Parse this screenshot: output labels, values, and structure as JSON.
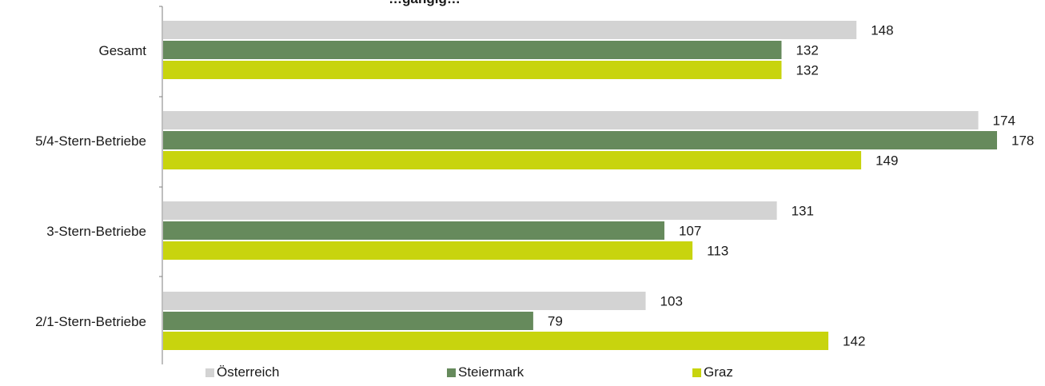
{
  "chart_data": {
    "type": "bar",
    "orientation": "horizontal",
    "title": "…gängig…",
    "categories": [
      "Gesamt",
      "5/4-Stern-Betriebe",
      "3-Stern-Betriebe",
      "2/1-Stern-Betriebe"
    ],
    "series": [
      {
        "name": "Österreich",
        "color": "#d3d3d3",
        "values": [
          148,
          174,
          131,
          103
        ]
      },
      {
        "name": "Steiermark",
        "color": "#668a5c",
        "values": [
          132,
          178,
          107,
          79
        ]
      },
      {
        "name": "Graz",
        "color": "#c8d40e",
        "values": [
          132,
          149,
          113,
          142
        ]
      }
    ],
    "xlim": [
      0,
      178
    ],
    "grid": false,
    "legend_position": "bottom"
  }
}
